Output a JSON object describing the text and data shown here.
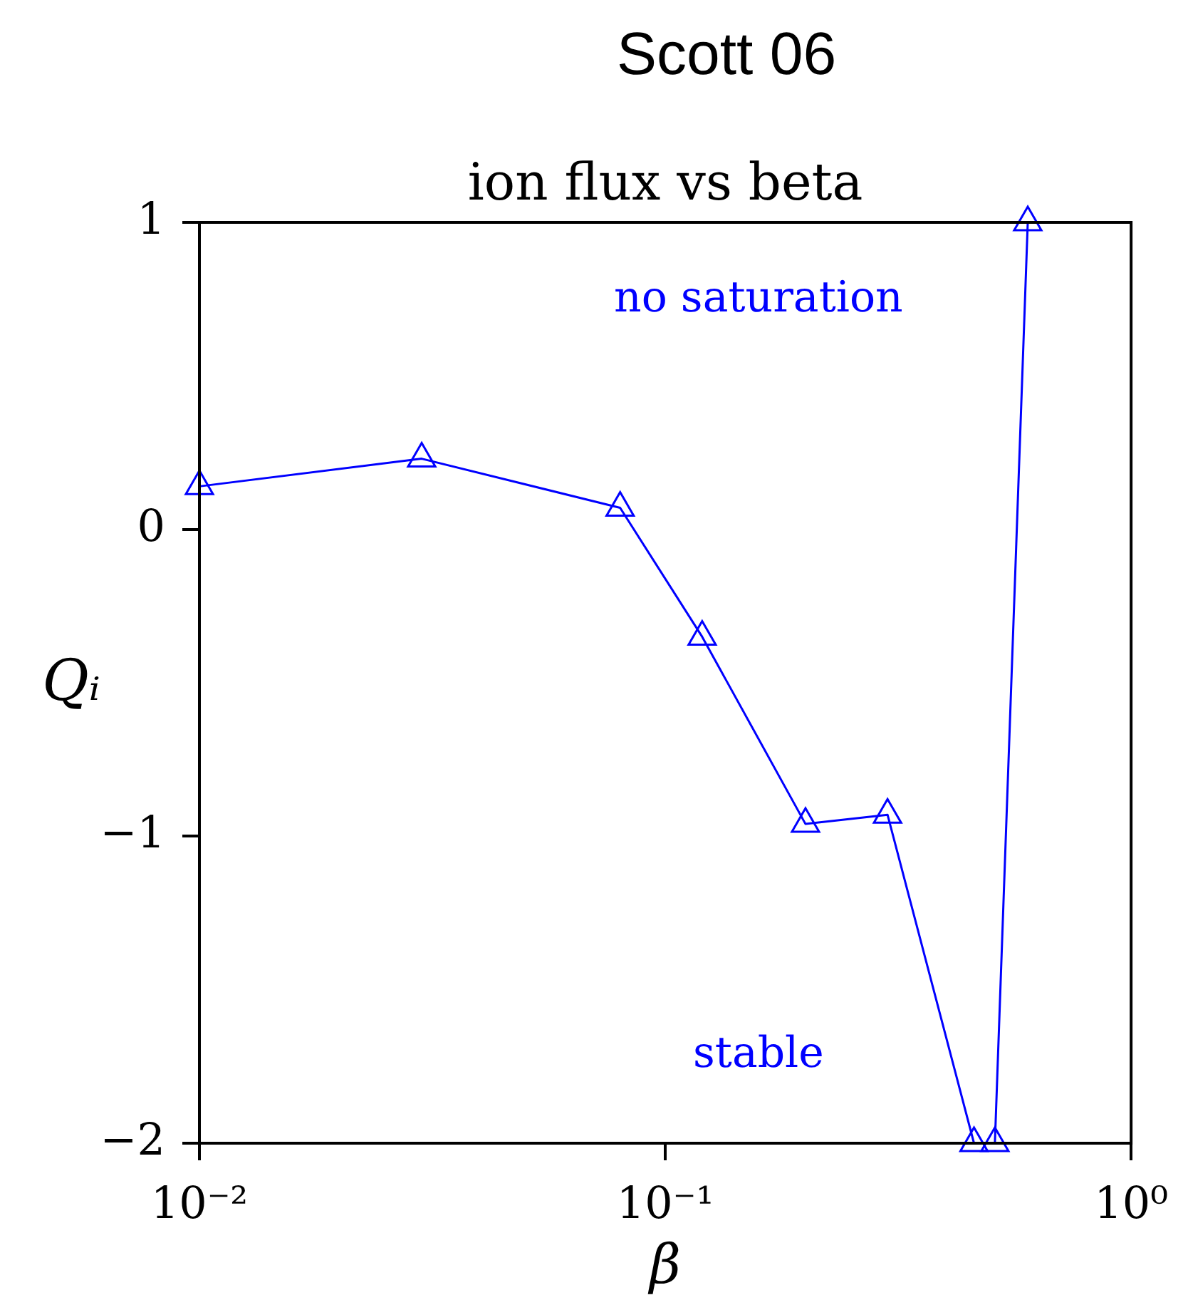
{
  "chart_data": {
    "type": "line",
    "title": "Scott 06",
    "subtitle": "ion flux vs beta",
    "xlabel": "β",
    "ylabel": "Qᵢ",
    "x": [
      0.01,
      0.03,
      0.08,
      0.12,
      0.2,
      0.3,
      0.46,
      0.51,
      0.6
    ],
    "values": [
      0.14,
      0.23,
      0.07,
      -0.35,
      -0.96,
      -0.93,
      -2,
      -2,
      1
    ],
    "color": "#0000ff",
    "marker": "triangle",
    "log": "x",
    "xlim": [
      0.01,
      1
    ],
    "xticks": [
      {
        "value": 0.01,
        "label": "10⁻²"
      },
      {
        "value": 0.1,
        "label": "10⁻¹"
      },
      {
        "value": 1,
        "label": "10⁰"
      }
    ],
    "ylim": [
      -2,
      1
    ],
    "yticks": [
      {
        "value": -2,
        "label": "−2"
      },
      {
        "value": -1,
        "label": "−1"
      },
      0,
      1
    ],
    "annotations": [
      "no saturation",
      "stable"
    ],
    "legend": false
  }
}
